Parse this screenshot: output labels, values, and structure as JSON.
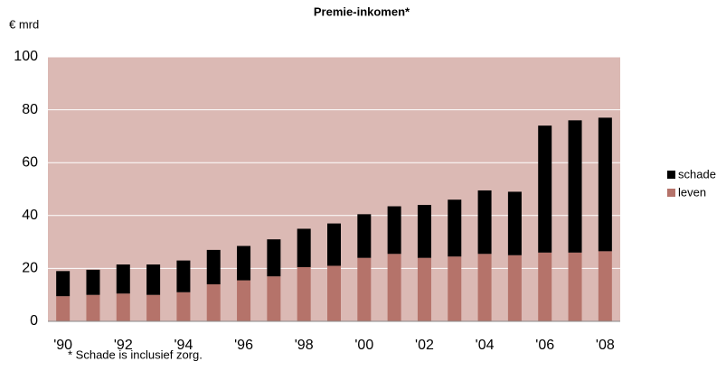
{
  "chart_data": {
    "type": "bar",
    "stacked": true,
    "title": "Premie-inkomen*",
    "y_axis_label": "€ mrd",
    "footnote": "* Schade is inclusief zorg.",
    "categories": [
      "'90",
      null,
      "'92",
      null,
      "'94",
      null,
      "'96",
      null,
      "'98",
      null,
      "'00",
      null,
      "'02",
      null,
      "'04",
      null,
      "'06",
      null,
      "'08"
    ],
    "series": [
      {
        "name": "leven",
        "color": "#b5736a",
        "values": [
          9.5,
          10,
          10.5,
          10,
          11,
          14,
          15.5,
          17,
          20.5,
          21,
          24,
          25.5,
          24,
          24.5,
          25.5,
          25,
          26,
          26,
          26.5
        ]
      },
      {
        "name": "schade",
        "color": "#000000",
        "values": [
          9.5,
          9.5,
          11,
          11.5,
          12,
          13,
          13,
          14,
          14.5,
          16,
          16.5,
          18,
          20,
          21.5,
          24,
          24,
          48,
          50,
          50.5
        ]
      }
    ],
    "legend_order": [
      1,
      0
    ],
    "ylim": [
      0,
      100
    ],
    "yticks": [
      0,
      20,
      40,
      60,
      80,
      100
    ],
    "grid": true,
    "plot_background": "#dbb9b4"
  }
}
